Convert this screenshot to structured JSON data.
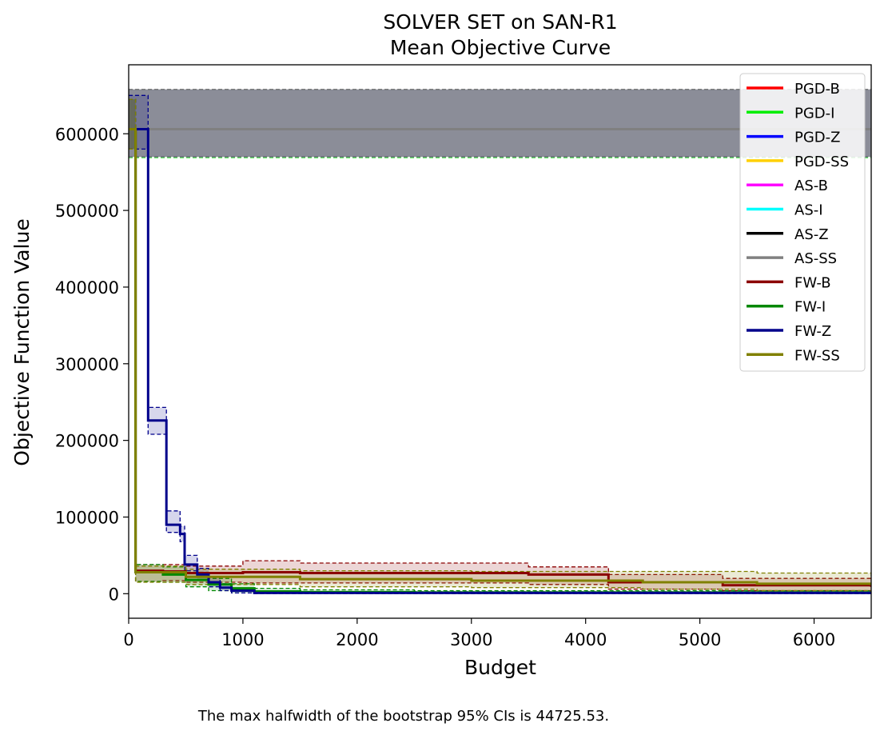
{
  "chart_data": {
    "type": "line",
    "title": "SOLVER SET on SAN-R1",
    "subtitle": "Mean Objective Curve",
    "xlabel": "Budget",
    "ylabel": "Objective Function Value",
    "xlim": [
      0,
      6500
    ],
    "ylim": [
      -32000,
      690000
    ],
    "xticks": [
      0,
      1000,
      2000,
      3000,
      4000,
      5000,
      6000
    ],
    "yticks": [
      0,
      100000,
      200000,
      300000,
      400000,
      500000,
      600000
    ],
    "legend_position": "top-right",
    "footnote": "The max halfwidth of the bootstrap 95% CIs is 44725.53.",
    "series": [
      {
        "name": "PGD-B",
        "color": "#ff0000",
        "x": [
          0,
          6500
        ],
        "y": [
          606000,
          606000
        ],
        "lower": [
          570000,
          570000
        ],
        "upper": [
          658000,
          658000
        ]
      },
      {
        "name": "PGD-I",
        "color": "#00ee00",
        "x": [
          0,
          6500
        ],
        "y": [
          606000,
          606000
        ],
        "lower": [
          569000,
          569000
        ],
        "upper": [
          658000,
          658000
        ]
      },
      {
        "name": "PGD-Z",
        "color": "#0000ff",
        "x": [
          0,
          6500
        ],
        "y": [
          606000,
          606000
        ],
        "lower": [
          570000,
          570000
        ],
        "upper": [
          658000,
          658000
        ]
      },
      {
        "name": "PGD-SS",
        "color": "#ffd000",
        "x": [
          0,
          6500
        ],
        "y": [
          606000,
          606000
        ],
        "lower": [
          570000,
          570000
        ],
        "upper": [
          658000,
          658000
        ]
      },
      {
        "name": "AS-B",
        "color": "#ff00ff",
        "x": [
          0,
          6500
        ],
        "y": [
          606000,
          606000
        ],
        "lower": [
          570000,
          570000
        ],
        "upper": [
          658000,
          658000
        ]
      },
      {
        "name": "AS-I",
        "color": "#00ffff",
        "x": [
          0,
          6500
        ],
        "y": [
          606000,
          606000
        ],
        "lower": [
          570000,
          570000
        ],
        "upper": [
          658000,
          658000
        ]
      },
      {
        "name": "AS-Z",
        "color": "#000000",
        "x": [
          0,
          6500
        ],
        "y": [
          606000,
          606000
        ],
        "lower": [
          570000,
          570000
        ],
        "upper": [
          658000,
          658000
        ]
      },
      {
        "name": "AS-SS",
        "color": "#808080",
        "x": [
          0,
          6500
        ],
        "y": [
          606000,
          606000
        ],
        "lower": [
          570000,
          570000
        ],
        "upper": [
          658000,
          658000
        ]
      },
      {
        "name": "FW-B",
        "color": "#8b0000",
        "x": [
          0,
          60,
          300,
          500,
          1000,
          1500,
          3500,
          4200,
          5200,
          6500
        ],
        "y": [
          606000,
          30000,
          29000,
          27000,
          28000,
          27000,
          25000,
          15000,
          11000,
          9000
        ],
        "lower": [
          580000,
          16000,
          17000,
          15000,
          14000,
          14000,
          12000,
          6000,
          4000,
          3000
        ],
        "upper": [
          645000,
          38000,
          38000,
          36000,
          43000,
          40000,
          35000,
          25000,
          20000,
          17000
        ]
      },
      {
        "name": "FW-I",
        "color": "#008800",
        "x": [
          0,
          60,
          300,
          500,
          700,
          900,
          1100,
          1500,
          2500,
          6500
        ],
        "y": [
          606000,
          28000,
          25000,
          18000,
          12000,
          7000,
          3000,
          2000,
          1500,
          1000
        ],
        "lower": [
          580000,
          16000,
          15000,
          9000,
          4000,
          1000,
          500,
          300,
          200,
          200
        ],
        "upper": [
          645000,
          38000,
          35000,
          28000,
          20000,
          13000,
          7000,
          5000,
          4000,
          3000
        ]
      },
      {
        "name": "FW-Z",
        "color": "#00008b",
        "x": [
          0,
          170,
          330,
          450,
          490,
          600,
          700,
          800,
          900,
          1100,
          6500
        ],
        "y": [
          606000,
          226000,
          90000,
          78000,
          38000,
          25000,
          15000,
          8000,
          4000,
          1000,
          500
        ],
        "lower": [
          580000,
          208000,
          80000,
          68000,
          30000,
          18000,
          9000,
          4000,
          1000,
          200,
          100
        ],
        "upper": [
          650000,
          243000,
          108000,
          88000,
          50000,
          33000,
          22000,
          13000,
          7000,
          2500,
          1000
        ]
      },
      {
        "name": "FW-SS",
        "color": "#808000",
        "x": [
          0,
          60,
          500,
          1500,
          3000,
          4500,
          5500,
          6500
        ],
        "y": [
          606000,
          28000,
          22000,
          19000,
          17000,
          15000,
          13000,
          11000
        ],
        "lower": [
          580000,
          15000,
          12000,
          9000,
          8000,
          6000,
          4000,
          3000
        ],
        "upper": [
          645000,
          36000,
          32000,
          30000,
          29000,
          29000,
          27000,
          20000
        ]
      }
    ]
  }
}
